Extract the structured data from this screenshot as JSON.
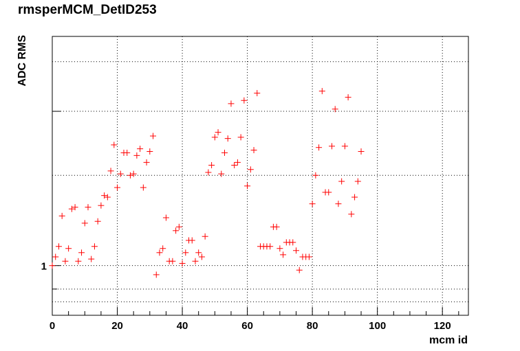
{
  "chart_data": {
    "type": "scatter",
    "title": "rmsperMCM_DetID253",
    "xlabel": "mcm id",
    "ylabel": "ADC RMS",
    "xlim": [
      0,
      128
    ],
    "ylim": [
      0.8,
      2.8
    ],
    "y_scale": "log",
    "grid": true,
    "x_ticks": [
      0,
      20,
      40,
      60,
      80,
      100,
      120
    ],
    "y_tick_labels": [
      {
        "value": 1,
        "label": "1"
      }
    ],
    "marker": "+",
    "marker_color": "#ff0000",
    "points": [
      [
        0,
        1.0
      ],
      [
        1,
        1.04
      ],
      [
        2,
        1.09
      ],
      [
        3,
        1.25
      ],
      [
        4,
        1.02
      ],
      [
        5,
        1.08
      ],
      [
        6,
        1.29
      ],
      [
        7,
        1.3
      ],
      [
        8,
        1.02
      ],
      [
        9,
        1.06
      ],
      [
        10,
        1.21
      ],
      [
        11,
        1.3
      ],
      [
        12,
        1.03
      ],
      [
        13,
        1.09
      ],
      [
        14,
        1.22
      ],
      [
        15,
        1.31
      ],
      [
        16,
        1.37
      ],
      [
        17,
        1.36
      ],
      [
        18,
        1.53
      ],
      [
        19,
        1.72
      ],
      [
        20,
        1.42
      ],
      [
        21,
        1.51
      ],
      [
        22,
        1.66
      ],
      [
        23,
        1.66
      ],
      [
        24,
        1.5
      ],
      [
        25,
        1.51
      ],
      [
        26,
        1.64
      ],
      [
        27,
        1.69
      ],
      [
        28,
        1.42
      ],
      [
        29,
        1.59
      ],
      [
        30,
        1.67
      ],
      [
        31,
        1.79
      ],
      [
        32,
        0.96
      ],
      [
        33,
        1.06
      ],
      [
        34,
        1.08
      ],
      [
        35,
        1.24
      ],
      [
        36,
        1.02
      ],
      [
        37,
        1.02
      ],
      [
        38,
        1.17
      ],
      [
        39,
        1.19
      ],
      [
        40,
        1.01
      ],
      [
        41,
        1.06
      ],
      [
        42,
        1.12
      ],
      [
        43,
        1.12
      ],
      [
        44,
        1.02
      ],
      [
        45,
        1.06
      ],
      [
        46,
        1.04
      ],
      [
        47,
        1.14
      ],
      [
        48,
        1.52
      ],
      [
        49,
        1.57
      ],
      [
        50,
        1.78
      ],
      [
        51,
        1.82
      ],
      [
        52,
        1.51
      ],
      [
        53,
        1.66
      ],
      [
        54,
        1.77
      ],
      [
        55,
        2.07
      ],
      [
        56,
        1.57
      ],
      [
        57,
        1.59
      ],
      [
        58,
        1.78
      ],
      [
        59,
        2.1
      ],
      [
        60,
        1.43
      ],
      [
        61,
        1.54
      ],
      [
        62,
        1.68
      ],
      [
        63,
        2.17
      ],
      [
        64,
        1.09
      ],
      [
        65,
        1.09
      ],
      [
        66,
        1.09
      ],
      [
        67,
        1.09
      ],
      [
        68,
        1.19
      ],
      [
        69,
        1.19
      ],
      [
        70,
        1.08
      ],
      [
        71,
        1.05
      ],
      [
        72,
        1.11
      ],
      [
        73,
        1.11
      ],
      [
        74,
        1.11
      ],
      [
        75,
        1.07
      ],
      [
        76,
        0.98
      ],
      [
        77,
        1.04
      ],
      [
        78,
        1.04
      ],
      [
        79,
        1.04
      ],
      [
        80,
        1.32
      ],
      [
        81,
        1.5
      ],
      [
        82,
        1.7
      ],
      [
        83,
        2.19
      ],
      [
        84,
        1.39
      ],
      [
        85,
        1.39
      ],
      [
        86,
        1.71
      ],
      [
        87,
        2.02
      ],
      [
        88,
        1.32
      ],
      [
        89,
        1.46
      ],
      [
        90,
        1.71
      ],
      [
        91,
        2.13
      ],
      [
        92,
        1.26
      ],
      [
        93,
        1.36
      ],
      [
        94,
        1.46
      ],
      [
        95,
        1.67
      ]
    ]
  }
}
